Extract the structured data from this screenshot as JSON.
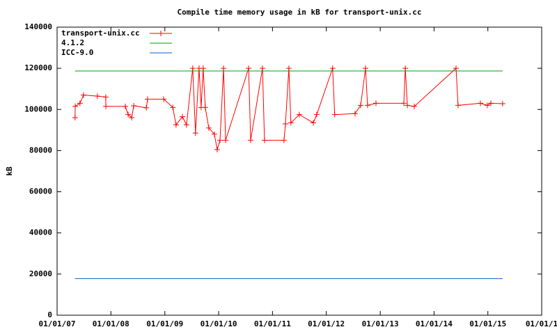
{
  "chart_data": {
    "type": "line",
    "title": "Compile time memory usage in kB for transport-unix.cc",
    "y_label": "kB",
    "xlim": [
      "2007-01-01",
      "2016-01-01"
    ],
    "xticks": [
      {
        "value": "2007-01-01",
        "label": "01/01/07"
      },
      {
        "value": "2008-01-01",
        "label": "01/01/08"
      },
      {
        "value": "2009-01-01",
        "label": "01/01/09"
      },
      {
        "value": "2010-01-01",
        "label": "01/01/10"
      },
      {
        "value": "2011-01-01",
        "label": "01/01/11"
      },
      {
        "value": "2012-01-01",
        "label": "01/01/12"
      },
      {
        "value": "2013-01-01",
        "label": "01/01/13"
      },
      {
        "value": "2014-01-01",
        "label": "01/01/14"
      },
      {
        "value": "2015-01-01",
        "label": "01/01/15"
      },
      {
        "value": "2016-01-01",
        "label": "01/01/1"
      }
    ],
    "ylim": [
      0,
      140000
    ],
    "yticks": [
      0,
      20000,
      40000,
      60000,
      80000,
      100000,
      120000,
      140000
    ],
    "grid": false,
    "legend": "top-left",
    "series": [
      {
        "name": "transport-unix.cc",
        "color": "#ff0000",
        "markers": true,
        "x": [
          "2007-05-03",
          "2007-05-04",
          "2007-06-05",
          "2007-06-29",
          "2007-10-01",
          "2007-11-27",
          "2007-11-28",
          "2008-04-08",
          "2008-04-27",
          "2008-05-21",
          "2008-06-04",
          "2008-08-28",
          "2008-09-06",
          "2008-12-24",
          "2009-02-24",
          "2009-03-18",
          "2009-04-30",
          "2009-05-28",
          "2009-07-09",
          "2009-07-28",
          "2009-08-21",
          "2009-09-04",
          "2009-09-18",
          "2009-10-02",
          "2009-10-26",
          "2009-12-03",
          "2009-12-22",
          "2010-01-10",
          "2010-02-03",
          "2010-02-17",
          "2010-07-23",
          "2010-08-06",
          "2010-10-25",
          "2010-11-08",
          "2011-03-20",
          "2011-03-30",
          "2011-04-22",
          "2011-05-06",
          "2011-07-02",
          "2011-10-05",
          "2011-10-28",
          "2012-02-13",
          "2012-02-27",
          "2012-07-14",
          "2012-08-21",
          "2012-09-23",
          "2012-10-07",
          "2012-12-03",
          "2013-06-10",
          "2013-06-20",
          "2013-07-04",
          "2013-08-20",
          "2014-05-30",
          "2014-06-13",
          "2014-11-11",
          "2014-12-28",
          "2015-01-21",
          "2015-04-11"
        ],
        "values": [
          96000,
          101500,
          103000,
          107000,
          106500,
          106000,
          101500,
          101500,
          97500,
          96000,
          101800,
          100800,
          105000,
          105000,
          101000,
          92500,
          96500,
          92500,
          120000,
          88500,
          120000,
          101000,
          120000,
          101000,
          91000,
          88000,
          80500,
          85000,
          120000,
          85000,
          120000,
          85000,
          120000,
          85000,
          85000,
          93000,
          120000,
          93500,
          97500,
          93500,
          97500,
          120000,
          97500,
          98000,
          102000,
          120000,
          102000,
          103000,
          103000,
          120000,
          102000,
          101500,
          120000,
          102000,
          103000,
          102000,
          103000,
          102800
        ]
      },
      {
        "name": "4.1.2",
        "color": "#00a000",
        "x": [
          "2007-05-03",
          "2015-04-11"
        ],
        "values": [
          118700,
          118700
        ]
      },
      {
        "name": "ICC-9.0",
        "color": "#0060c0",
        "x": [
          "2007-05-03",
          "2015-04-11"
        ],
        "values": [
          17800,
          17800
        ]
      }
    ]
  }
}
